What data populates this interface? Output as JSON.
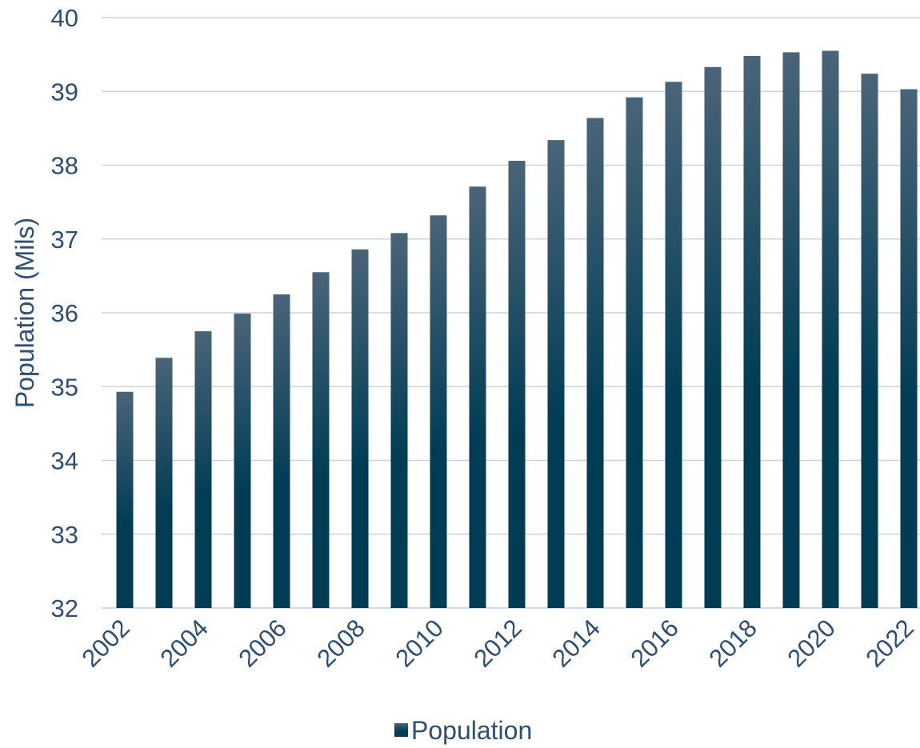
{
  "chart_data": {
    "type": "bar",
    "title": "",
    "xlabel": "",
    "ylabel": "Population (Mils)",
    "ylim": [
      32,
      40
    ],
    "yticks": [
      "32",
      "33",
      "34",
      "35",
      "36",
      "37",
      "38",
      "39",
      "40"
    ],
    "grid": true,
    "legend_placement": "bottom",
    "categories": [
      "2002",
      "2003",
      "2004",
      "2005",
      "2006",
      "2007",
      "2008",
      "2009",
      "2010",
      "2011",
      "2012",
      "2013",
      "2014",
      "2015",
      "2016",
      "2017",
      "2018",
      "2019",
      "2020",
      "2021",
      "2022"
    ],
    "xtick_labels": [
      "2002",
      "",
      "2004",
      "",
      "2006",
      "",
      "2008",
      "",
      "2010",
      "",
      "2012",
      "",
      "2014",
      "",
      "2016",
      "",
      "2018",
      "",
      "2020",
      "",
      "2022"
    ],
    "series": [
      {
        "name": "Population",
        "values": [
          34.93,
          35.39,
          35.75,
          35.99,
          36.25,
          36.55,
          36.86,
          37.08,
          37.32,
          37.71,
          38.06,
          38.34,
          38.64,
          38.92,
          39.13,
          39.33,
          39.48,
          39.53,
          39.55,
          39.24,
          39.03
        ]
      }
    ],
    "colors": {
      "bar_top": "#4a6478",
      "bar_bottom": "#003d55",
      "axis_text": "#2c4f73",
      "grid": "#c9d5e2"
    }
  }
}
